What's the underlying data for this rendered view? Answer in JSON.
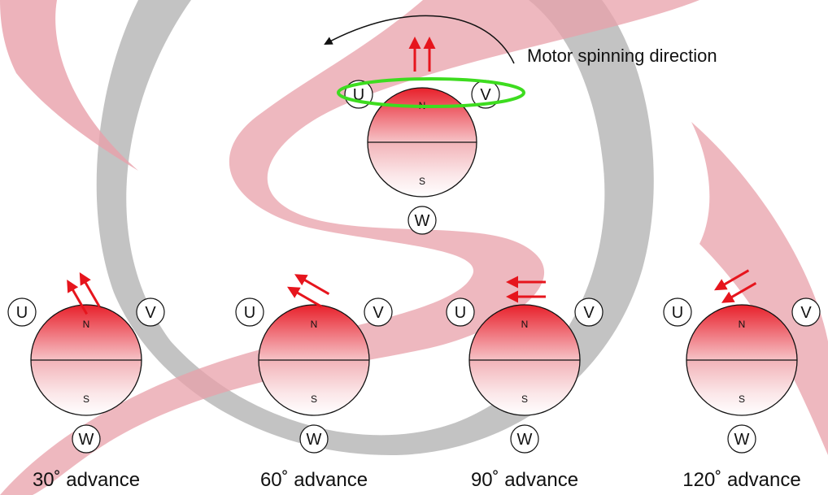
{
  "title": "Motor spinning direction",
  "colors": {
    "magnet_north": "#e8202a",
    "arrow": "#e6151d",
    "highlight_ring": "#3ddc1f",
    "watermark_red": "#e8a0aa",
    "watermark_gray": "#b9b9b9"
  },
  "top_rotor": {
    "north_label": "N",
    "south_label": "S",
    "phases": {
      "u": "U",
      "v": "V",
      "w": "W"
    }
  },
  "rotors": [
    {
      "north_label": "N",
      "south_label": "S",
      "phases": {
        "u": "U",
        "v": "V",
        "w": "W"
      },
      "caption": "30˚ advance",
      "advance_deg": 30
    },
    {
      "north_label": "N",
      "south_label": "S",
      "phases": {
        "u": "U",
        "v": "V",
        "w": "W"
      },
      "caption": "60˚ advance",
      "advance_deg": 60
    },
    {
      "north_label": "N",
      "south_label": "S",
      "phases": {
        "u": "U",
        "v": "V",
        "w": "W"
      },
      "caption": "90˚ advance",
      "advance_deg": 90
    },
    {
      "north_label": "N",
      "south_label": "S",
      "phases": {
        "u": "U",
        "v": "V",
        "w": "W"
      },
      "caption": "120˚ advance",
      "advance_deg": 120
    }
  ]
}
